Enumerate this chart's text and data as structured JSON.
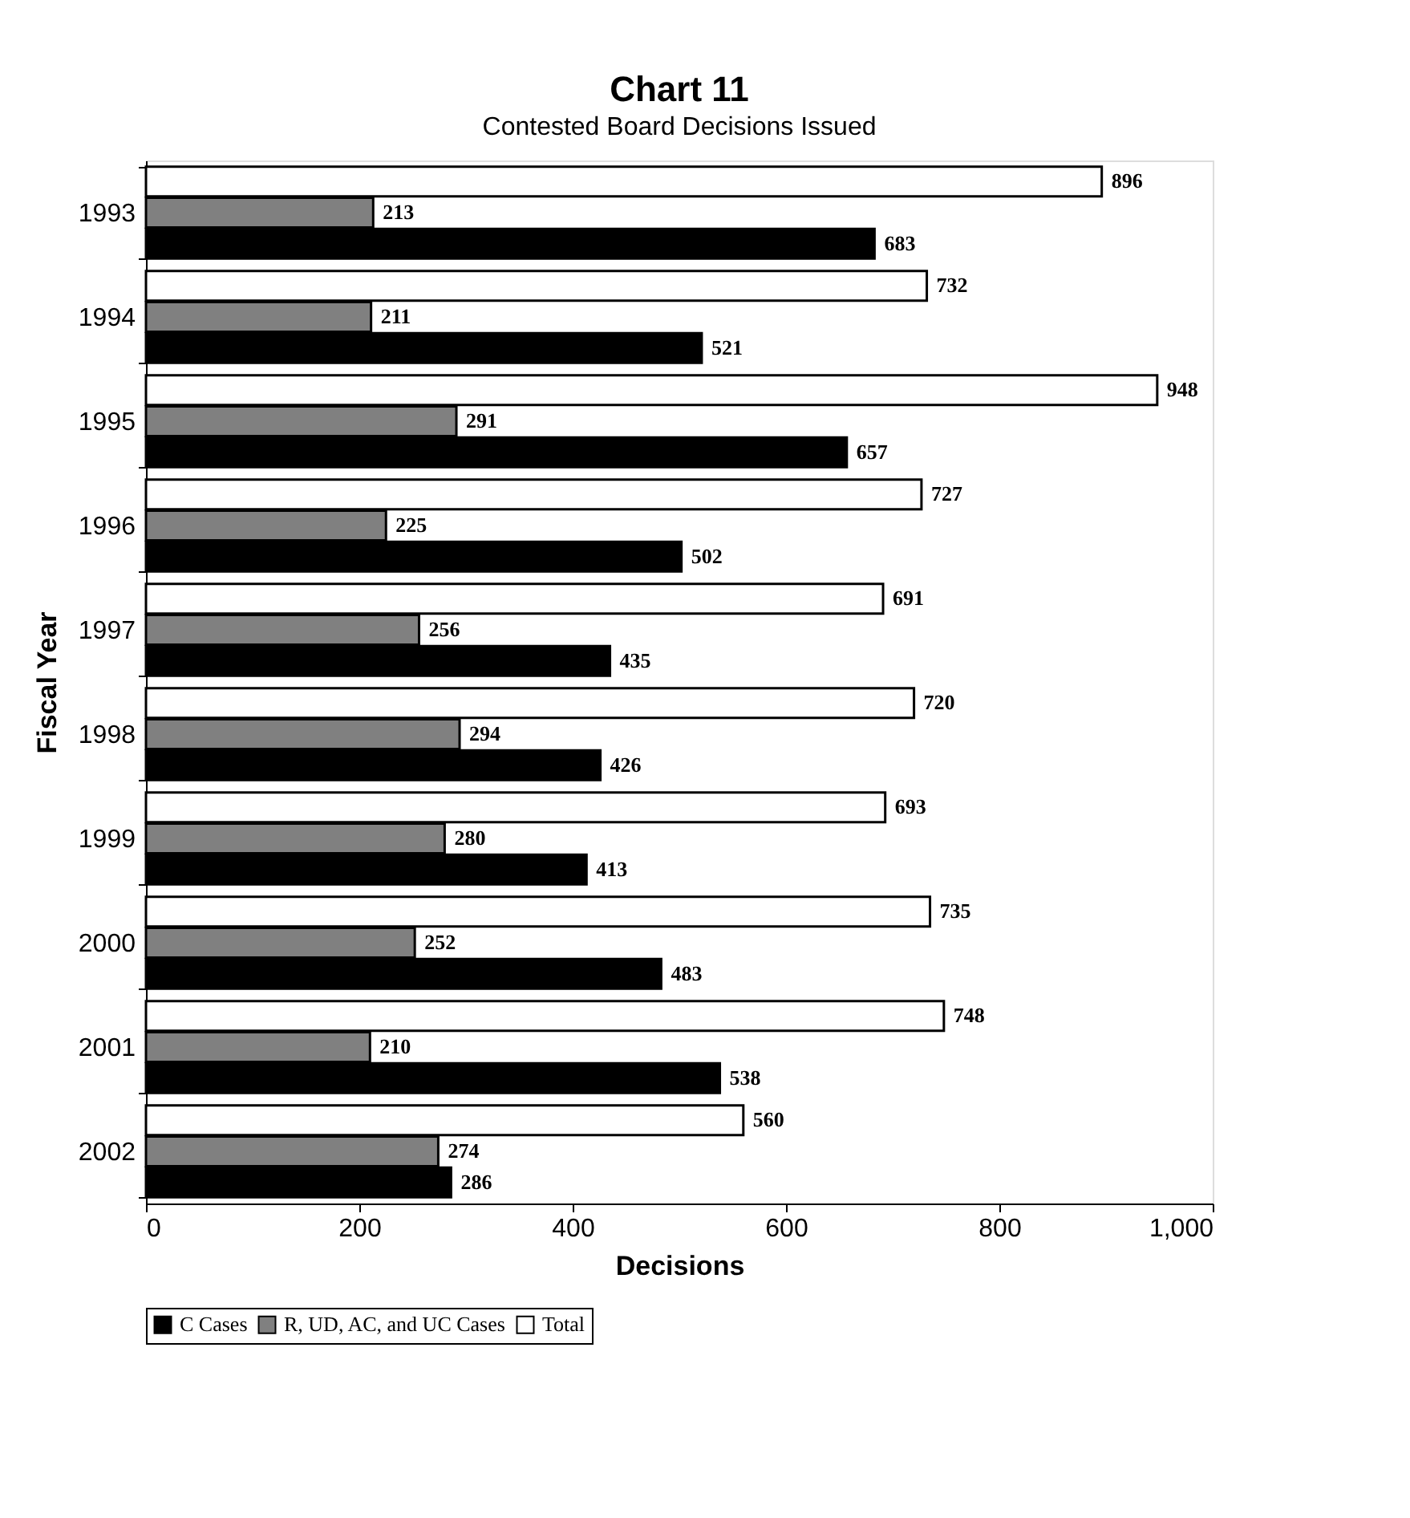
{
  "chart_data": {
    "type": "bar",
    "orientation": "horizontal",
    "title": "Chart 11",
    "subtitle": "Contested Board Decisions Issued",
    "xlabel": "Decisions",
    "ylabel": "Fiscal Year",
    "categories": [
      "1993",
      "1994",
      "1995",
      "1996",
      "1997",
      "1998",
      "1999",
      "2000",
      "2001",
      "2002"
    ],
    "series": [
      {
        "name": "C Cases",
        "color": "#000000",
        "values": [
          683,
          521,
          657,
          502,
          435,
          426,
          413,
          483,
          538,
          286
        ]
      },
      {
        "name": "R, UD, AC, and UC Cases",
        "color": "#808080",
        "values": [
          213,
          211,
          291,
          225,
          256,
          294,
          280,
          252,
          210,
          274
        ]
      },
      {
        "name": "Total",
        "color": "#ffffff",
        "values": [
          896,
          732,
          948,
          727,
          691,
          720,
          693,
          735,
          748,
          560
        ]
      }
    ],
    "xlim": [
      0,
      1000
    ],
    "xticks": [
      0,
      200,
      400,
      600,
      800,
      {
        "value": 1000,
        "label": "1,000"
      }
    ],
    "grid": false,
    "legend": "bottom",
    "data_labels": true
  }
}
